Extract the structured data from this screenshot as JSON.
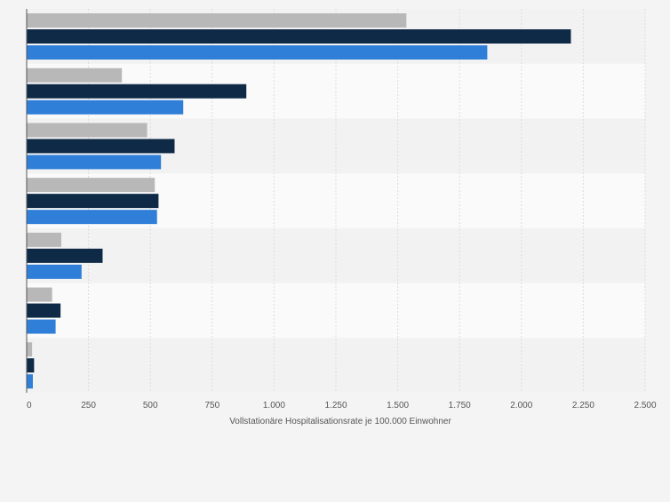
{
  "chart_data": {
    "type": "bar",
    "orientation": "horizontal",
    "xlabel": "Vollstationäre Hospitalisationsrate je 100.000 Einwohner",
    "xlim": [
      0,
      2500
    ],
    "x_ticks": [
      0,
      250,
      500,
      750,
      1000,
      1250,
      1500,
      1750,
      2000,
      2250,
      2500
    ],
    "x_tick_labels": [
      "0",
      "250",
      "500",
      "750",
      "1.000",
      "1.250",
      "1.500",
      "1.750",
      "2.000",
      "2.250",
      "2.500"
    ],
    "category_count": 7,
    "grid": true,
    "series": [
      {
        "color": "#b8b8b8",
        "values": [
          1535,
          385,
          487,
          518,
          140,
          103,
          22
        ]
      },
      {
        "color": "#0e2a47",
        "values": [
          2200,
          888,
          598,
          533,
          307,
          137,
          30
        ]
      },
      {
        "color": "#2f7ed8",
        "values": [
          1862,
          633,
          543,
          527,
          222,
          117,
          25
        ]
      }
    ],
    "colors": {
      "background": "#f4f4f4",
      "band_light": "#fafafa",
      "band_dark": "#f2f2f2",
      "grid": "#dcdcdc",
      "tick_label": "#555555"
    }
  }
}
